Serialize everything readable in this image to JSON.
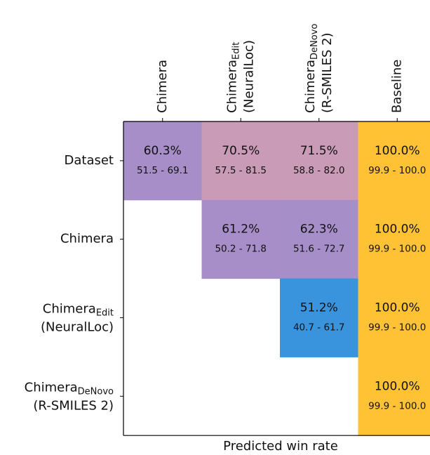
{
  "chart_data": {
    "type": "heatmap",
    "xlabel": "Predicted win rate",
    "columns": [
      {
        "text": "Chimera"
      },
      {
        "text": "Chimera",
        "sub": "Edit",
        "line2": "(NeuralLoc)"
      },
      {
        "text": "Chimera",
        "sub": "DeNovo",
        "line2": "(R-SMILES 2)"
      },
      {
        "text": "Baseline"
      }
    ],
    "rows": [
      {
        "text": "Dataset"
      },
      {
        "text": "Chimera"
      },
      {
        "text": "Chimera",
        "sub": "Edit",
        "line2": "(NeuralLoc)"
      },
      {
        "text": "Chimera",
        "sub": "DeNovo",
        "line2": "(R-SMILES 2)"
      }
    ],
    "values": [
      [
        60.3,
        70.5,
        71.5,
        100
      ],
      [
        null,
        61.2,
        62.3,
        100
      ],
      [
        null,
        null,
        51.2,
        100
      ],
      [
        null,
        null,
        null,
        100
      ]
    ],
    "value_labels": [
      [
        "60.3%",
        "70.5%",
        "71.5%",
        "100.0%"
      ],
      [
        null,
        "61.2%",
        "62.3%",
        "100.0%"
      ],
      [
        null,
        null,
        "51.2%",
        "100.0%"
      ],
      [
        null,
        null,
        null,
        "100.0%"
      ]
    ],
    "ci_labels": [
      [
        "51.5 - 69.1",
        "57.5 - 81.5",
        "58.8 - 82.0",
        "99.9 - 100.0"
      ],
      [
        null,
        "50.2 - 71.8",
        "51.6 - 72.7",
        "99.9 - 100.0"
      ],
      [
        null,
        null,
        "40.7 - 61.7",
        "99.9 - 100.0"
      ],
      [
        null,
        null,
        null,
        "99.9 - 100.0"
      ]
    ],
    "colors": [
      [
        "#a78ec8",
        "#c99bb7",
        "#c99bb7",
        "#ffc235"
      ],
      [
        null,
        "#a78ec8",
        "#a68fc8",
        "#ffc235"
      ],
      [
        null,
        null,
        "#3a93dd",
        "#ffc235"
      ],
      [
        null,
        null,
        null,
        "#ffc235"
      ]
    ]
  }
}
